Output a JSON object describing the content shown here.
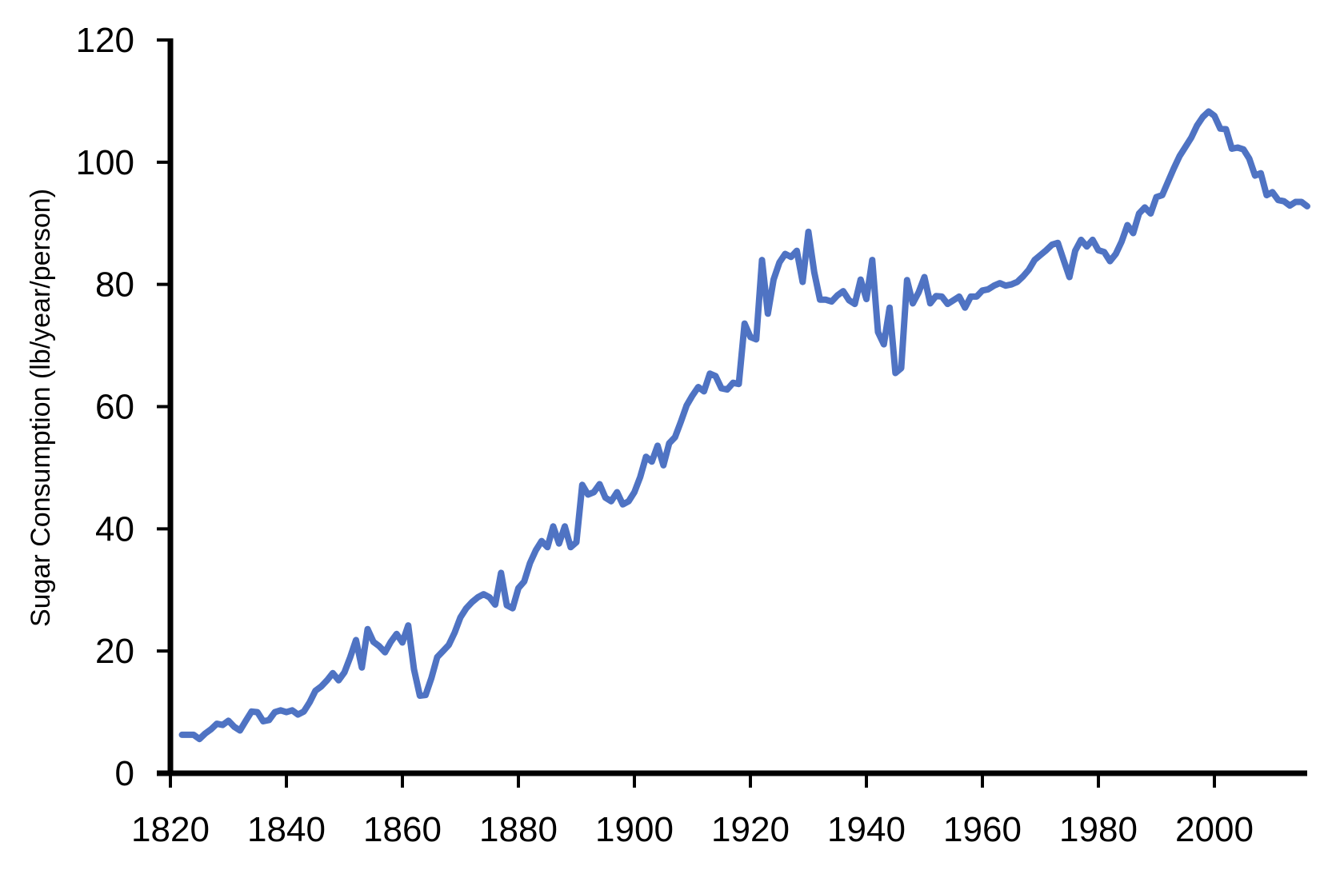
{
  "chart_data": {
    "type": "line",
    "title": "",
    "xlabel": "",
    "ylabel": "Sugar Consumption (lb/year/person)",
    "xlim": [
      1820,
      2016
    ],
    "ylim": [
      0,
      120
    ],
    "x_ticks": [
      1820,
      1840,
      1860,
      1880,
      1900,
      1920,
      1940,
      1960,
      1980,
      2000
    ],
    "y_ticks": [
      0,
      20,
      40,
      60,
      80,
      100,
      120
    ],
    "grid": false,
    "legend": "none",
    "series": [
      {
        "color": "#4f73c3",
        "points": [
          [
            1822,
            6.3
          ],
          [
            1823,
            6.3
          ],
          [
            1824,
            6.3
          ],
          [
            1825,
            5.6
          ],
          [
            1826,
            6.5
          ],
          [
            1827,
            7.2
          ],
          [
            1828,
            8.1
          ],
          [
            1829,
            7.9
          ],
          [
            1830,
            8.6
          ],
          [
            1831,
            7.6
          ],
          [
            1832,
            7.0
          ],
          [
            1833,
            8.6
          ],
          [
            1834,
            10.1
          ],
          [
            1835,
            10.0
          ],
          [
            1836,
            8.5
          ],
          [
            1837,
            8.7
          ],
          [
            1838,
            10.0
          ],
          [
            1839,
            10.3
          ],
          [
            1840,
            10.0
          ],
          [
            1841,
            10.3
          ],
          [
            1842,
            9.6
          ],
          [
            1843,
            10.1
          ],
          [
            1844,
            11.6
          ],
          [
            1845,
            13.5
          ],
          [
            1846,
            14.2
          ],
          [
            1847,
            15.2
          ],
          [
            1848,
            16.4
          ],
          [
            1849,
            15.2
          ],
          [
            1850,
            16.5
          ],
          [
            1851,
            19.0
          ],
          [
            1852,
            21.8
          ],
          [
            1853,
            17.3
          ],
          [
            1854,
            23.6
          ],
          [
            1855,
            21.5
          ],
          [
            1856,
            20.8
          ],
          [
            1857,
            19.8
          ],
          [
            1858,
            21.5
          ],
          [
            1859,
            22.8
          ],
          [
            1860,
            21.4
          ],
          [
            1861,
            24.2
          ],
          [
            1862,
            17.0
          ],
          [
            1863,
            12.7
          ],
          [
            1864,
            12.8
          ],
          [
            1865,
            15.6
          ],
          [
            1866,
            19.0
          ],
          [
            1867,
            20.0
          ],
          [
            1868,
            21.0
          ],
          [
            1869,
            23.0
          ],
          [
            1870,
            25.5
          ],
          [
            1871,
            27.0
          ],
          [
            1872,
            28.0
          ],
          [
            1873,
            28.8
          ],
          [
            1874,
            29.3
          ],
          [
            1875,
            28.8
          ],
          [
            1876,
            27.6
          ],
          [
            1877,
            32.8
          ],
          [
            1878,
            27.5
          ],
          [
            1879,
            27.0
          ],
          [
            1880,
            30.3
          ],
          [
            1881,
            31.4
          ],
          [
            1882,
            34.4
          ],
          [
            1883,
            36.5
          ],
          [
            1884,
            38.0
          ],
          [
            1885,
            37.0
          ],
          [
            1886,
            40.4
          ],
          [
            1887,
            37.6
          ],
          [
            1888,
            40.4
          ],
          [
            1889,
            37.0
          ],
          [
            1890,
            37.8
          ],
          [
            1891,
            47.2
          ],
          [
            1892,
            45.6
          ],
          [
            1893,
            46.0
          ],
          [
            1894,
            47.3
          ],
          [
            1895,
            45.1
          ],
          [
            1896,
            44.5
          ],
          [
            1897,
            46.0
          ],
          [
            1898,
            44.0
          ],
          [
            1899,
            44.5
          ],
          [
            1900,
            46.0
          ],
          [
            1901,
            48.5
          ],
          [
            1902,
            51.8
          ],
          [
            1903,
            51.0
          ],
          [
            1904,
            53.6
          ],
          [
            1905,
            50.4
          ],
          [
            1906,
            54.0
          ],
          [
            1907,
            55.0
          ],
          [
            1908,
            57.5
          ],
          [
            1909,
            60.2
          ],
          [
            1910,
            61.8
          ],
          [
            1911,
            63.2
          ],
          [
            1912,
            62.5
          ],
          [
            1913,
            65.4
          ],
          [
            1914,
            65.0
          ],
          [
            1915,
            63.0
          ],
          [
            1916,
            62.8
          ],
          [
            1917,
            63.9
          ],
          [
            1918,
            63.7
          ],
          [
            1919,
            73.6
          ],
          [
            1920,
            71.4
          ],
          [
            1921,
            71.0
          ],
          [
            1922,
            84.0
          ],
          [
            1923,
            75.2
          ],
          [
            1924,
            80.8
          ],
          [
            1925,
            83.6
          ],
          [
            1926,
            85.0
          ],
          [
            1927,
            84.5
          ],
          [
            1928,
            85.5
          ],
          [
            1929,
            80.4
          ],
          [
            1930,
            88.6
          ],
          [
            1931,
            82.0
          ],
          [
            1932,
            77.5
          ],
          [
            1933,
            77.5
          ],
          [
            1934,
            77.2
          ],
          [
            1935,
            78.2
          ],
          [
            1936,
            78.9
          ],
          [
            1937,
            77.4
          ],
          [
            1938,
            76.8
          ],
          [
            1939,
            80.8
          ],
          [
            1940,
            77.6
          ],
          [
            1941,
            84.0
          ],
          [
            1942,
            72.2
          ],
          [
            1943,
            70.2
          ],
          [
            1944,
            76.2
          ],
          [
            1945,
            65.5
          ],
          [
            1946,
            66.3
          ],
          [
            1947,
            80.7
          ],
          [
            1948,
            76.9
          ],
          [
            1949,
            78.7
          ],
          [
            1950,
            81.2
          ],
          [
            1951,
            76.9
          ],
          [
            1952,
            78.1
          ],
          [
            1953,
            78.0
          ],
          [
            1954,
            76.8
          ],
          [
            1955,
            77.4
          ],
          [
            1956,
            78.0
          ],
          [
            1957,
            76.2
          ],
          [
            1958,
            78.0
          ],
          [
            1959,
            78.0
          ],
          [
            1960,
            79.0
          ],
          [
            1961,
            79.2
          ],
          [
            1962,
            79.8
          ],
          [
            1963,
            80.2
          ],
          [
            1964,
            79.8
          ],
          [
            1965,
            80.0
          ],
          [
            1966,
            80.4
          ],
          [
            1967,
            81.3
          ],
          [
            1968,
            82.4
          ],
          [
            1969,
            84.0
          ],
          [
            1970,
            84.8
          ],
          [
            1971,
            85.6
          ],
          [
            1972,
            86.5
          ],
          [
            1973,
            86.8
          ],
          [
            1974,
            84.0
          ],
          [
            1975,
            81.2
          ],
          [
            1976,
            85.5
          ],
          [
            1977,
            87.3
          ],
          [
            1978,
            86.2
          ],
          [
            1979,
            87.3
          ],
          [
            1980,
            85.6
          ],
          [
            1981,
            85.3
          ],
          [
            1982,
            83.8
          ],
          [
            1983,
            85.0
          ],
          [
            1984,
            87.0
          ],
          [
            1985,
            89.7
          ],
          [
            1986,
            88.4
          ],
          [
            1987,
            91.6
          ],
          [
            1988,
            92.6
          ],
          [
            1989,
            91.6
          ],
          [
            1990,
            94.3
          ],
          [
            1991,
            94.6
          ],
          [
            1992,
            96.8
          ],
          [
            1993,
            99.0
          ],
          [
            1994,
            101.0
          ],
          [
            1995,
            102.5
          ],
          [
            1996,
            104.0
          ],
          [
            1997,
            106.0
          ],
          [
            1998,
            107.4
          ],
          [
            1999,
            108.3
          ],
          [
            2000,
            107.6
          ],
          [
            2001,
            105.5
          ],
          [
            2002,
            105.4
          ],
          [
            2003,
            102.2
          ],
          [
            2004,
            102.4
          ],
          [
            2005,
            102.1
          ],
          [
            2006,
            100.6
          ],
          [
            2007,
            97.8
          ],
          [
            2008,
            98.2
          ],
          [
            2009,
            94.6
          ],
          [
            2010,
            95.1
          ],
          [
            2011,
            93.8
          ],
          [
            2012,
            93.6
          ],
          [
            2013,
            92.9
          ],
          [
            2014,
            93.5
          ],
          [
            2015,
            93.5
          ],
          [
            2016,
            92.8
          ]
        ]
      }
    ]
  }
}
